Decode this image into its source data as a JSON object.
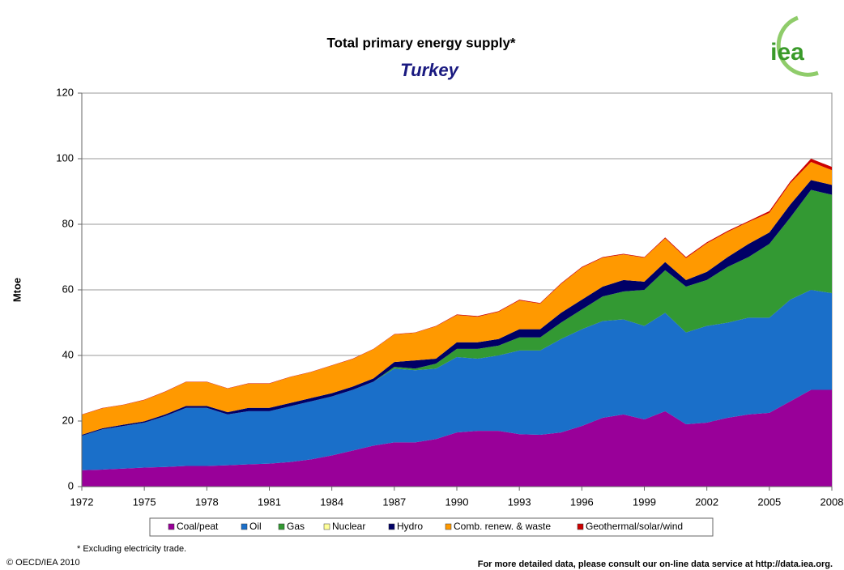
{
  "chart_data": {
    "type": "stacked_area",
    "title": "Total primary energy supply*",
    "subtitle": "Turkey",
    "y_label": "Mtoe",
    "footnote": "* Excluding electricity trade.",
    "copyright": "© OECD/IEA 2010",
    "source": "For more detailed data, please consult our on-line data service at http://data.iea.org.",
    "logo": "iea",
    "x": [
      1972,
      1973,
      1974,
      1975,
      1976,
      1977,
      1978,
      1979,
      1980,
      1981,
      1982,
      1983,
      1984,
      1985,
      1986,
      1987,
      1988,
      1989,
      1990,
      1991,
      1992,
      1993,
      1994,
      1995,
      1996,
      1997,
      1998,
      1999,
      2000,
      2001,
      2002,
      2003,
      2004,
      2005,
      2006,
      2007,
      2008
    ],
    "xlim": [
      1972,
      2008
    ],
    "xticks": [
      1972,
      1975,
      1978,
      1981,
      1984,
      1987,
      1990,
      1993,
      1996,
      1999,
      2002,
      2005,
      2008
    ],
    "ylim": [
      0,
      120
    ],
    "yticks": [
      0,
      20,
      40,
      60,
      80,
      100,
      120
    ],
    "grid": true,
    "series": [
      {
        "name": "Coal/peat",
        "color": "#990099",
        "values": [
          5,
          5.2,
          5.5,
          5.8,
          6,
          6.3,
          6.3,
          6.5,
          6.8,
          7,
          7.5,
          8.3,
          9.5,
          11,
          12.5,
          13.5,
          13.5,
          14.5,
          16.5,
          17,
          17,
          16,
          15.8,
          16.5,
          18.5,
          21,
          22,
          20.5,
          23,
          19,
          19.5,
          21,
          22,
          22.5,
          26,
          29.5,
          29.5
        ]
      },
      {
        "name": "Oil",
        "color": "#1a6fc9",
        "values": [
          10.5,
          12.3,
          13,
          13.7,
          15.5,
          17.7,
          17.7,
          15.5,
          16.2,
          16,
          17,
          17.7,
          18,
          18.5,
          19.5,
          22.5,
          22,
          21.5,
          23,
          22,
          23,
          25.5,
          25.7,
          28.5,
          29.5,
          29.5,
          29,
          28.5,
          30,
          28,
          29.5,
          29,
          29.5,
          29,
          31,
          30.5,
          29.5
        ]
      },
      {
        "name": "Gas",
        "color": "#339933",
        "values": [
          0,
          0,
          0,
          0,
          0,
          0,
          0,
          0,
          0,
          0,
          0,
          0,
          0,
          0,
          0,
          0.5,
          0.5,
          1.5,
          2.5,
          3,
          3,
          4,
          4,
          5,
          6,
          7.5,
          8.5,
          11,
          13,
          14,
          14,
          17,
          18.5,
          22.5,
          25,
          30.5,
          30
        ]
      },
      {
        "name": "Nuclear",
        "color": "#ffff99",
        "values": [
          0,
          0,
          0,
          0,
          0,
          0,
          0,
          0,
          0,
          0,
          0,
          0,
          0,
          0,
          0,
          0,
          0,
          0,
          0,
          0,
          0,
          0,
          0,
          0,
          0,
          0,
          0,
          0,
          0,
          0,
          0,
          0,
          0,
          0,
          0,
          0,
          0
        ]
      },
      {
        "name": "Hydro",
        "color": "#000066",
        "values": [
          0.3,
          0.3,
          0.4,
          0.4,
          0.5,
          0.6,
          0.6,
          0.7,
          1,
          1,
          1,
          1,
          1,
          1,
          1,
          1.5,
          2.5,
          1.5,
          2,
          2,
          2,
          2.5,
          2.5,
          3,
          3,
          3,
          3.5,
          2.5,
          2.5,
          2,
          2.5,
          3,
          4,
          3.5,
          4,
          3,
          3
        ]
      },
      {
        "name": "Comb. renew. & waste",
        "color": "#ff9900",
        "values": [
          6.1,
          6.1,
          6,
          6.5,
          6.9,
          7.3,
          7.3,
          7.2,
          7.4,
          7.4,
          7.9,
          7.9,
          8.4,
          8.4,
          8.9,
          8.4,
          8.4,
          9.9,
          8.3,
          7.8,
          8.3,
          8.8,
          7.8,
          8.8,
          9.8,
          8.8,
          7.8,
          7.3,
          7.2,
          6.7,
          8.7,
          7.7,
          6.7,
          6,
          6.5,
          5.5,
          4.5
        ]
      },
      {
        "name": "Geothermal/solar/wind",
        "color": "#cc0000",
        "values": [
          0.1,
          0.1,
          0.1,
          0.1,
          0.1,
          0.1,
          0.1,
          0.1,
          0.1,
          0.1,
          0.1,
          0.1,
          0.1,
          0.1,
          0.1,
          0.1,
          0.1,
          0.1,
          0.2,
          0.2,
          0.2,
          0.2,
          0.2,
          0.2,
          0.2,
          0.2,
          0.2,
          0.2,
          0.3,
          0.3,
          0.3,
          0.3,
          0.3,
          0.5,
          0.5,
          1,
          1
        ]
      }
    ]
  }
}
